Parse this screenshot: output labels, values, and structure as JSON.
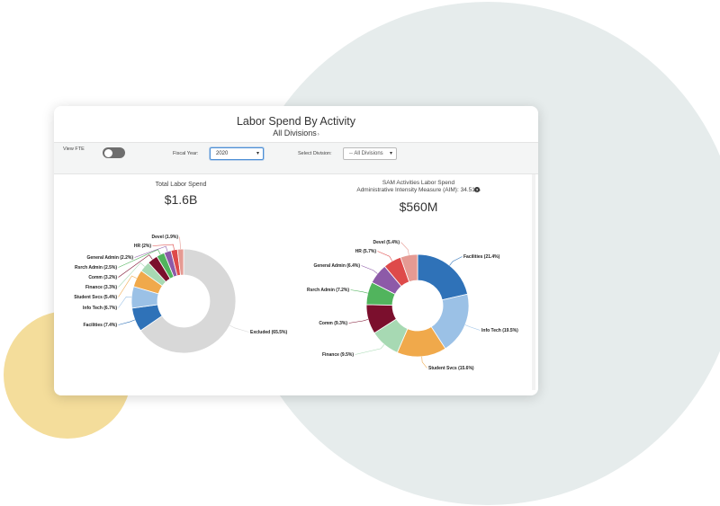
{
  "header": {
    "title": "Labor Spend By Activity",
    "subtitle": "All Divisions",
    "subtitle_chevron": "›"
  },
  "filters": {
    "view_fte_label": "View FTE",
    "view_fte_on": false,
    "fiscal_year_label": "Fiscal Year:",
    "fiscal_year_value": "2020",
    "division_label": "Select Division:",
    "division_value": "-- All Divisions"
  },
  "colors": {
    "blue": "#2f72b8",
    "light_blue": "#9bc1e6",
    "orange": "#f0a94b",
    "light_green": "#a7d9b3",
    "maroon": "#7b0f2d",
    "green": "#51b45d",
    "purple": "#8d5aa8",
    "red": "#de4a4a",
    "salmon": "#e59a93",
    "grey": "#d8d8d8"
  },
  "chart_data": [
    {
      "type": "pie",
      "title": "Total Labor Spend",
      "total_label": "$1.6B",
      "slices": [
        {
          "label": "Excluded (65.5%)",
          "value": 65.5,
          "color": "#d8d8d8"
        },
        {
          "label": "Facilities (7.4%)",
          "value": 7.4,
          "color": "#2f72b8"
        },
        {
          "label": "Info Tech (6.7%)",
          "value": 6.7,
          "color": "#9bc1e6"
        },
        {
          "label": "Student Svcs (5.4%)",
          "value": 5.4,
          "color": "#f0a94b"
        },
        {
          "label": "Finance (3.3%)",
          "value": 3.3,
          "color": "#a7d9b3"
        },
        {
          "label": "Comm (3.2%)",
          "value": 3.2,
          "color": "#7b0f2d"
        },
        {
          "label": "Rsrch Admin (2.5%)",
          "value": 2.5,
          "color": "#51b45d"
        },
        {
          "label": "General Admin (2.2%)",
          "value": 2.2,
          "color": "#8d5aa8"
        },
        {
          "label": "HR (2%)",
          "value": 2.0,
          "color": "#de4a4a"
        },
        {
          "label": "Devel (1.9%)",
          "value": 1.9,
          "color": "#e59a93"
        }
      ]
    },
    {
      "type": "pie",
      "title": "SAM Activities Labor Spend",
      "subtitle": "Administrative Intensity Measure (AIM): 34.51%",
      "subtitle_icon": "question-icon",
      "total_label": "$560M",
      "slices": [
        {
          "label": "Facilities (21.4%)",
          "value": 21.4,
          "color": "#2f72b8"
        },
        {
          "label": "Info Tech (19.5%)",
          "value": 19.5,
          "color": "#9bc1e6"
        },
        {
          "label": "Student Svcs (15.6%)",
          "value": 15.6,
          "color": "#f0a94b"
        },
        {
          "label": "Finance (9.5%)",
          "value": 9.5,
          "color": "#a7d9b3"
        },
        {
          "label": "Comm (9.3%)",
          "value": 9.3,
          "color": "#7b0f2d"
        },
        {
          "label": "Rsrch Admin (7.2%)",
          "value": 7.2,
          "color": "#51b45d"
        },
        {
          "label": "General Admin (6.4%)",
          "value": 6.4,
          "color": "#8d5aa8"
        },
        {
          "label": "HR (5.7%)",
          "value": 5.7,
          "color": "#de4a4a"
        },
        {
          "label": "Devel (5.4%)",
          "value": 5.4,
          "color": "#e59a93"
        }
      ]
    }
  ]
}
